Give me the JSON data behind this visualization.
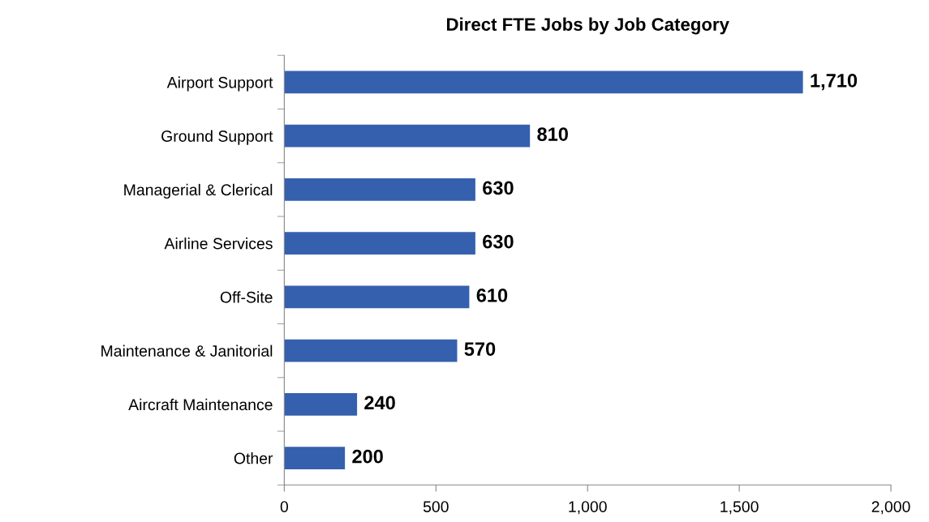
{
  "chart_data": {
    "type": "bar",
    "orientation": "horizontal",
    "title": "Direct FTE Jobs by Job Category",
    "categories": [
      "Airport Support",
      "Ground Support",
      "Managerial & Clerical",
      "Airline Services",
      "Off-Site",
      "Maintenance & Janitorial",
      "Aircraft Maintenance",
      "Other"
    ],
    "values": [
      1710,
      810,
      630,
      630,
      610,
      570,
      240,
      200
    ],
    "value_labels": [
      "1,710",
      "810",
      "630",
      "630",
      "610",
      "570",
      "240",
      "200"
    ],
    "color": "#3560ae",
    "xlim": [
      0,
      2000
    ],
    "xticks": [
      0,
      500,
      {
        "value": 1000,
        "label": "1,000"
      },
      {
        "value": 1500,
        "label": "1,500"
      },
      {
        "value": 2000,
        "label": "2,000"
      }
    ],
    "grid": false,
    "legend": false
  }
}
